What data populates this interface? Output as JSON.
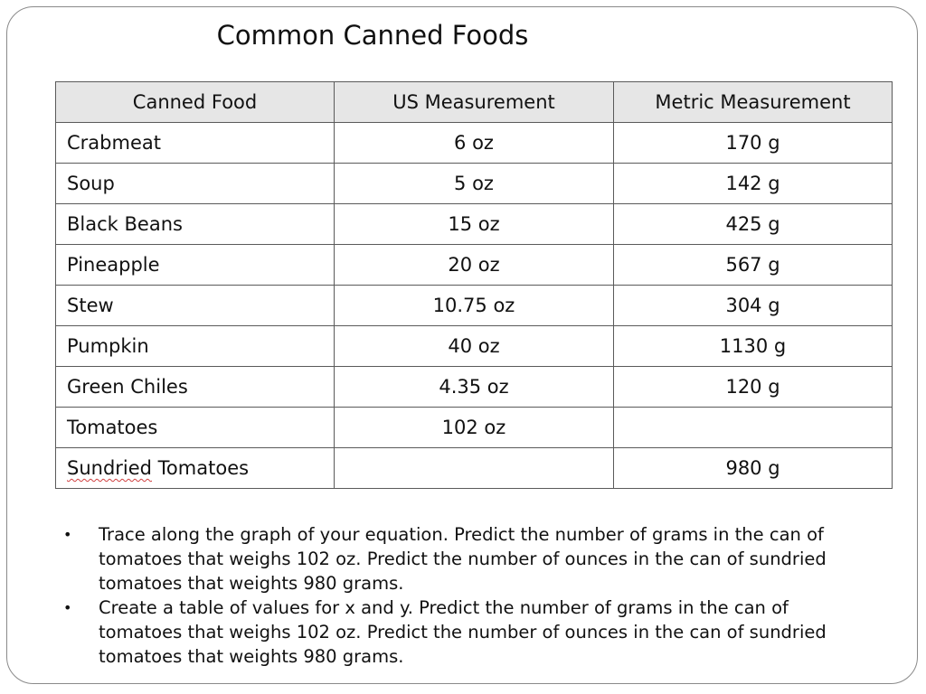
{
  "title": "Common Canned Foods",
  "table": {
    "headers": [
      "Canned Food",
      "US Measurement",
      "Metric Measurement"
    ],
    "rows": [
      {
        "food": "Crabmeat",
        "us": "6 oz",
        "metric": "170 g"
      },
      {
        "food": "Soup",
        "us": "5 oz",
        "metric": "142 g"
      },
      {
        "food": "Black Beans",
        "us": "15 oz",
        "metric": "425 g"
      },
      {
        "food": "Pineapple",
        "us": "20 oz",
        "metric": "567 g"
      },
      {
        "food": "Stew",
        "us": "10.75 oz",
        "metric": "304 g"
      },
      {
        "food": "Pumpkin",
        "us": "40 oz",
        "metric": "1130 g"
      },
      {
        "food": "Green Chiles",
        "us": "4.35 oz",
        "metric": "120 g"
      },
      {
        "food": "Tomatoes",
        "us": "102 oz",
        "metric": ""
      },
      {
        "food_part1": "Sundried",
        "food_part2": " Tomatoes",
        "us": "",
        "metric": "980 g"
      }
    ]
  },
  "bullets": [
    {
      "marker": "•",
      "text": "Trace along the graph of your equation.  Predict the number of grams in the can of tomatoes that weighs 102 oz.  Predict the number of ounces in the can of sundried tomatoes that weights 980 grams."
    },
    {
      "marker": "•",
      "text": "Create a table of values for x and y.  Predict the number of grams in the can of tomatoes that weighs 102 oz.  Predict the number of ounces in the can of sundried tomatoes that weights 980 grams."
    }
  ]
}
